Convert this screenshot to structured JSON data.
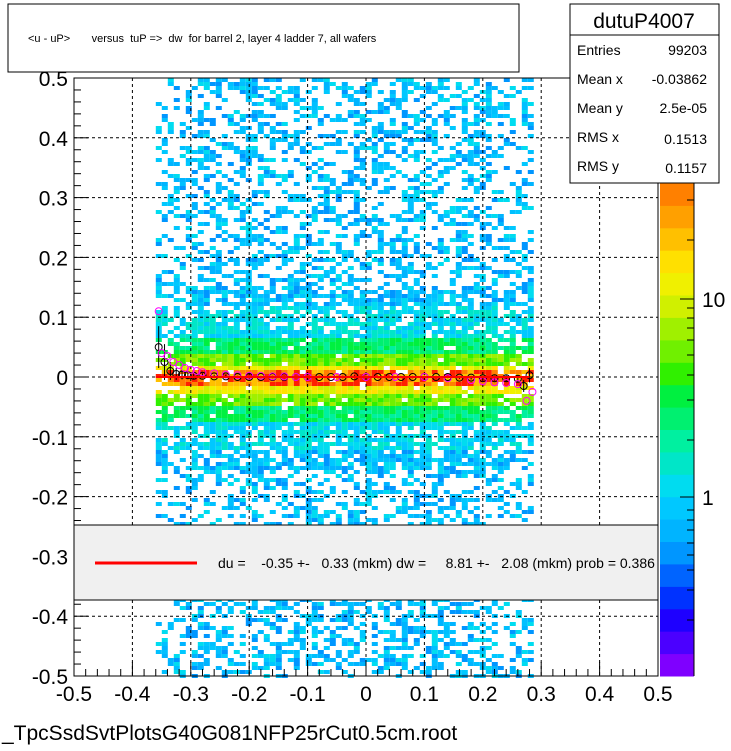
{
  "chart_data": {
    "type": "heatmap",
    "title": "<u - uP>       versus  tuP =>  dw  for barrel 2, layer 4 ladder 7, all wafers",
    "xlim": [
      -0.5,
      0.5
    ],
    "ylim": [
      -0.5,
      0.5
    ],
    "x_tick_labels": [
      "-0.5",
      "-0.4",
      "-0.3",
      "-0.2",
      "-0.1",
      "0",
      "0.1",
      "0.2",
      "0.3",
      "0.4",
      "0.5"
    ],
    "y_tick_labels": [
      "-0.5",
      "-0.4",
      "-0.3",
      "-0.2",
      "-0.1",
      "0",
      "0.1",
      "0.2",
      "0.3",
      "0.4",
      "0.5"
    ],
    "grid": true,
    "data_x_range": [
      -0.36,
      0.28
    ],
    "band_y": 0.0,
    "colorbar": {
      "scale": "log",
      "tick_labels": [
        "1",
        "10"
      ],
      "partial_label": "0",
      "colors": [
        "#7f00ff",
        "#4b00ff",
        "#1e00ff",
        "#0032ff",
        "#0064ff",
        "#0096ff",
        "#00b4ff",
        "#00c8ff",
        "#00dcf0",
        "#00e6c8",
        "#00f0a0",
        "#00f070",
        "#00f040",
        "#30f000",
        "#70f000",
        "#a0f000",
        "#d0f000",
        "#f0f000",
        "#ffe000",
        "#ffc000",
        "#ffa000",
        "#ff8000"
      ]
    },
    "profile_points": [
      {
        "x": -0.355,
        "y": 0.05,
        "err": 0.035
      },
      {
        "x": -0.345,
        "y": 0.025,
        "err": 0.03
      },
      {
        "x": -0.335,
        "y": 0.01,
        "err": 0.015
      },
      {
        "x": -0.325,
        "y": 0.005,
        "err": 0.01
      },
      {
        "x": -0.315,
        "y": 0.004,
        "err": 0.008
      },
      {
        "x": -0.305,
        "y": 0.003,
        "err": 0.006
      },
      {
        "x": -0.295,
        "y": 0.002,
        "err": 0.005
      },
      {
        "x": -0.28,
        "y": 0.002,
        "err": 0.004
      },
      {
        "x": -0.26,
        "y": 0.001,
        "err": 0.003
      },
      {
        "x": -0.24,
        "y": 0.001,
        "err": 0.003
      },
      {
        "x": -0.22,
        "y": 0.0,
        "err": 0.002
      },
      {
        "x": -0.2,
        "y": 0.0,
        "err": 0.002
      },
      {
        "x": -0.18,
        "y": 0.0,
        "err": 0.002
      },
      {
        "x": -0.16,
        "y": 0.0,
        "err": 0.002
      },
      {
        "x": -0.14,
        "y": 0.0,
        "err": 0.002
      },
      {
        "x": -0.12,
        "y": 0.0,
        "err": 0.002
      },
      {
        "x": -0.1,
        "y": 0.0,
        "err": 0.002
      },
      {
        "x": -0.08,
        "y": 0.0,
        "err": 0.002
      },
      {
        "x": -0.06,
        "y": 0.0,
        "err": 0.002
      },
      {
        "x": -0.04,
        "y": 0.0,
        "err": 0.002
      },
      {
        "x": -0.02,
        "y": 0.001,
        "err": 0.002
      },
      {
        "x": 0.0,
        "y": 0.0,
        "err": 0.002
      },
      {
        "x": 0.02,
        "y": 0.0,
        "err": 0.002
      },
      {
        "x": 0.04,
        "y": 0.0,
        "err": 0.002
      },
      {
        "x": 0.06,
        "y": 0.0,
        "err": 0.002
      },
      {
        "x": 0.08,
        "y": 0.0,
        "err": 0.002
      },
      {
        "x": 0.1,
        "y": 0.0,
        "err": 0.002
      },
      {
        "x": 0.12,
        "y": 0.0,
        "err": 0.002
      },
      {
        "x": 0.14,
        "y": 0.0,
        "err": 0.002
      },
      {
        "x": 0.16,
        "y": -0.001,
        "err": 0.002
      },
      {
        "x": 0.18,
        "y": -0.001,
        "err": 0.003
      },
      {
        "x": 0.2,
        "y": -0.002,
        "err": 0.003
      },
      {
        "x": 0.22,
        "y": -0.002,
        "err": 0.004
      },
      {
        "x": 0.24,
        "y": -0.002,
        "err": 0.005
      },
      {
        "x": 0.26,
        "y": -0.003,
        "err": 0.006
      },
      {
        "x": 0.27,
        "y": -0.015,
        "err": 0.01
      },
      {
        "x": 0.28,
        "y": 0.003,
        "err": 0.012
      }
    ],
    "profile_points_alt": [
      {
        "x": -0.355,
        "y": 0.11
      },
      {
        "x": -0.35,
        "y": 0.04
      },
      {
        "x": -0.34,
        "y": 0.035
      },
      {
        "x": -0.33,
        "y": 0.025
      },
      {
        "x": -0.32,
        "y": 0.02
      },
      {
        "x": -0.31,
        "y": 0.015
      },
      {
        "x": -0.3,
        "y": 0.012
      },
      {
        "x": -0.29,
        "y": 0.01
      },
      {
        "x": -0.28,
        "y": 0.008
      },
      {
        "x": -0.26,
        "y": 0.006
      },
      {
        "x": -0.24,
        "y": 0.004
      },
      {
        "x": -0.22,
        "y": 0.003
      },
      {
        "x": -0.2,
        "y": 0.002
      },
      {
        "x": -0.18,
        "y": 0.002
      },
      {
        "x": -0.16,
        "y": 0.001
      },
      {
        "x": -0.14,
        "y": 0.001
      },
      {
        "x": -0.12,
        "y": 0.0
      },
      {
        "x": -0.1,
        "y": 0.0
      },
      {
        "x": -0.05,
        "y": 0.0
      },
      {
        "x": 0.0,
        "y": 0.0
      },
      {
        "x": 0.05,
        "y": 0.0
      },
      {
        "x": 0.1,
        "y": 0.0
      },
      {
        "x": 0.14,
        "y": -0.002
      },
      {
        "x": 0.18,
        "y": -0.005
      },
      {
        "x": 0.2,
        "y": -0.007
      },
      {
        "x": 0.22,
        "y": -0.009
      },
      {
        "x": 0.24,
        "y": -0.01
      },
      {
        "x": 0.26,
        "y": -0.012
      },
      {
        "x": 0.275,
        "y": -0.04
      },
      {
        "x": 0.285,
        "y": -0.025
      }
    ],
    "fit_line": {
      "x_range": [
        -0.36,
        0.28
      ],
      "y": 0.0
    }
  },
  "stats": {
    "name": "dutuP4007",
    "rows": [
      {
        "label": "Entries",
        "value": "99203"
      },
      {
        "label": "Mean x",
        "value": "-0.03862"
      },
      {
        "label": "Mean y",
        "value": "2.5e-05"
      },
      {
        "label": "RMS x",
        "value": "0.1513"
      },
      {
        "label": "RMS y",
        "value": "0.1157"
      }
    ]
  },
  "legend": {
    "text": "du =    -0.35 +-   0.33 (mkm) dw =     8.81 +-   2.08 (mkm) prob = 0.386",
    "line_color": "#ff0000"
  },
  "footer": {
    "filename": "_TpcSsdSvtPlotsG40G081NFP25rCut0.5cm.root"
  }
}
